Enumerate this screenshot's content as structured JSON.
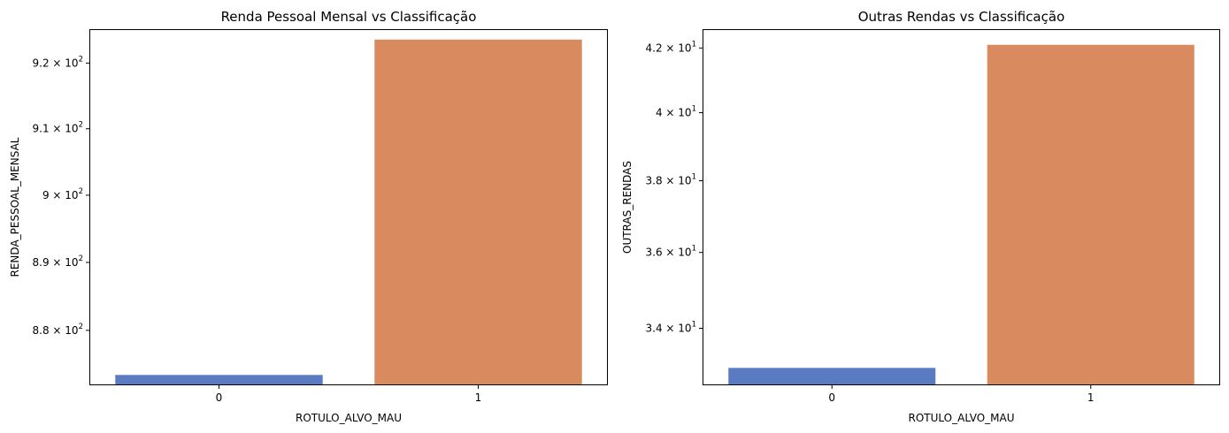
{
  "chart_data": [
    {
      "type": "bar",
      "title": "Renda Pessoal Mensal vs Classificação",
      "xlabel": "ROTULO_ALVO_MAU",
      "ylabel": "RENDA_PESSOAL_MENSAL",
      "yscale": "log",
      "categories": [
        "0",
        "1"
      ],
      "values": [
        873.5,
        923.6
      ],
      "colors": [
        "#5a7bc1",
        "#d98a5e"
      ],
      "ylim": [
        872.0,
        925.2
      ],
      "yticks": [
        {
          "value": 880,
          "mantissa": "8.8",
          "base": "10",
          "exp": "2"
        },
        {
          "value": 890,
          "mantissa": "8.9",
          "base": "10",
          "exp": "2"
        },
        {
          "value": 900,
          "mantissa": "9",
          "base": "10",
          "exp": "2"
        },
        {
          "value": 910,
          "mantissa": "9.1",
          "base": "10",
          "exp": "2"
        },
        {
          "value": 920,
          "mantissa": "9.2",
          "base": "10",
          "exp": "2"
        }
      ]
    },
    {
      "type": "bar",
      "title": "Outras Rendas vs Classificação",
      "xlabel": "ROTULO_ALVO_MAU",
      "ylabel": "OUTRAS_RENDAS",
      "yscale": "log",
      "categories": [
        "0",
        "1"
      ],
      "values": [
        33.0,
        42.1
      ],
      "colors": [
        "#5a7bc1",
        "#d98a5e"
      ],
      "ylim": [
        32.57,
        42.6
      ],
      "yticks": [
        {
          "value": 34,
          "mantissa": "3.4",
          "base": "10",
          "exp": "1"
        },
        {
          "value": 36,
          "mantissa": "3.6",
          "base": "10",
          "exp": "1"
        },
        {
          "value": 38,
          "mantissa": "3.8",
          "base": "10",
          "exp": "1"
        },
        {
          "value": 40,
          "mantissa": "4",
          "base": "10",
          "exp": "1"
        },
        {
          "value": 42,
          "mantissa": "4.2",
          "base": "10",
          "exp": "1"
        }
      ]
    }
  ]
}
